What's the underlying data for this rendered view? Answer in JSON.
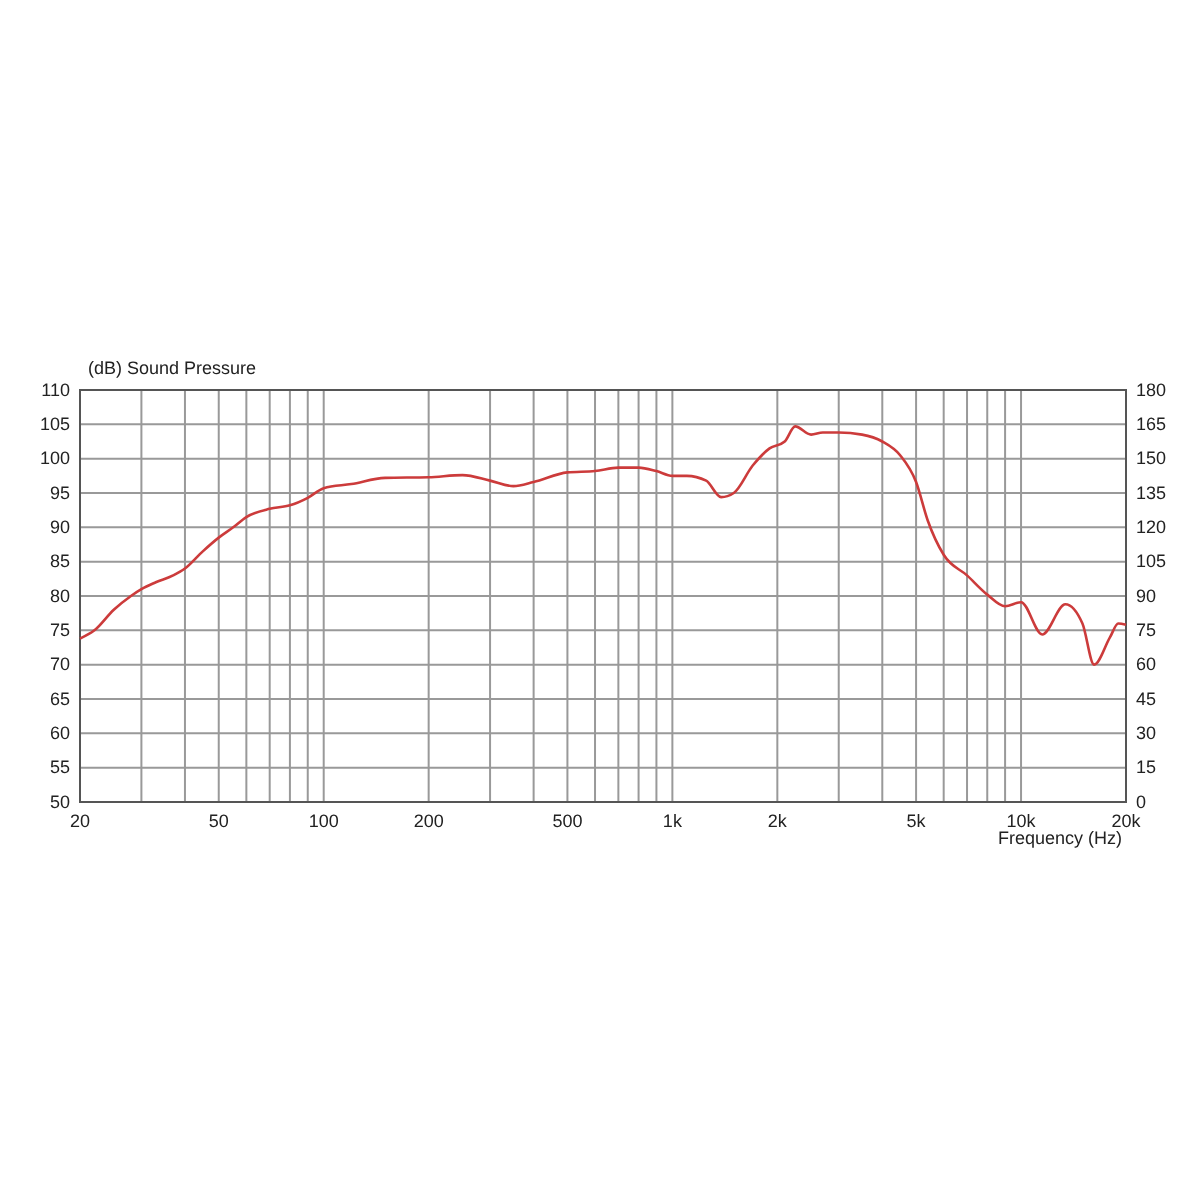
{
  "chart_data": {
    "type": "line",
    "ylabel": "(dB)  Sound Pressure",
    "xlabel": "Frequency  (Hz)",
    "log": "x",
    "grid": true,
    "marker": "none",
    "line_style": "solid",
    "xlim": [
      20,
      20000
    ],
    "ylim": [
      50,
      110
    ],
    "y2lim": [
      0,
      180
    ],
    "xticks": [
      20,
      {
        "value": 30,
        "label": null
      },
      {
        "value": 40,
        "label": null
      },
      50,
      {
        "value": 60,
        "label": null
      },
      {
        "value": 70,
        "label": null
      },
      {
        "value": 80,
        "label": null
      },
      {
        "value": 90,
        "label": null
      },
      100,
      200,
      {
        "value": 300,
        "label": null
      },
      {
        "value": 400,
        "label": null
      },
      500,
      {
        "value": 600,
        "label": null
      },
      {
        "value": 700,
        "label": null
      },
      {
        "value": 800,
        "label": null
      },
      {
        "value": 900,
        "label": null
      },
      {
        "value": 1000,
        "label": "1k"
      },
      {
        "value": 2000,
        "label": "2k"
      },
      {
        "value": 3000,
        "label": null
      },
      {
        "value": 4000,
        "label": null
      },
      {
        "value": 5000,
        "label": "5k"
      },
      {
        "value": 6000,
        "label": null
      },
      {
        "value": 7000,
        "label": null
      },
      {
        "value": 8000,
        "label": null
      },
      {
        "value": 9000,
        "label": null
      },
      {
        "value": 10000,
        "label": "10k"
      },
      {
        "value": 20000,
        "label": "20k"
      }
    ],
    "yticks": [
      50,
      55,
      60,
      65,
      70,
      75,
      80,
      85,
      90,
      95,
      100,
      105,
      110
    ],
    "y2ticks": [
      0,
      15,
      30,
      45,
      60,
      75,
      90,
      105,
      120,
      135,
      150,
      165,
      180
    ],
    "series": [
      {
        "color": "#cc3b3b",
        "x": [
          20,
          22,
          25,
          28,
          30,
          33,
          37,
          40,
          45,
          50,
          55,
          60,
          70,
          80,
          90,
          100,
          120,
          150,
          200,
          250,
          300,
          350,
          400,
          500,
          600,
          700,
          800,
          900,
          1000,
          1100,
          1250,
          1380,
          1500,
          1700,
          1900,
          2100,
          2250,
          2500,
          2700,
          3000,
          3500,
          4000,
          4500,
          5000,
          5400,
          6000,
          7000,
          8000,
          9000,
          10000,
          11500,
          13400,
          15000,
          16200,
          18000,
          19000,
          20000
        ],
        "values": [
          73.8,
          75,
          78,
          80,
          81,
          82,
          83,
          84,
          86.5,
          88.5,
          90,
          91.5,
          92.7,
          93.2,
          94.3,
          95.7,
          96.3,
          97.2,
          97.3,
          97.6,
          96.8,
          96,
          96.6,
          98,
          98.2,
          98.7,
          98.7,
          98.2,
          97.5,
          97.5,
          96.8,
          94.4,
          95,
          99,
          101.5,
          102.5,
          104.7,
          103.5,
          103.8,
          103.8,
          103.5,
          102.5,
          100.5,
          96.6,
          91,
          86,
          83,
          80.2,
          78.5,
          79.1,
          74.4,
          78.8,
          76,
          70,
          74,
          76,
          75.8
        ]
      }
    ]
  }
}
